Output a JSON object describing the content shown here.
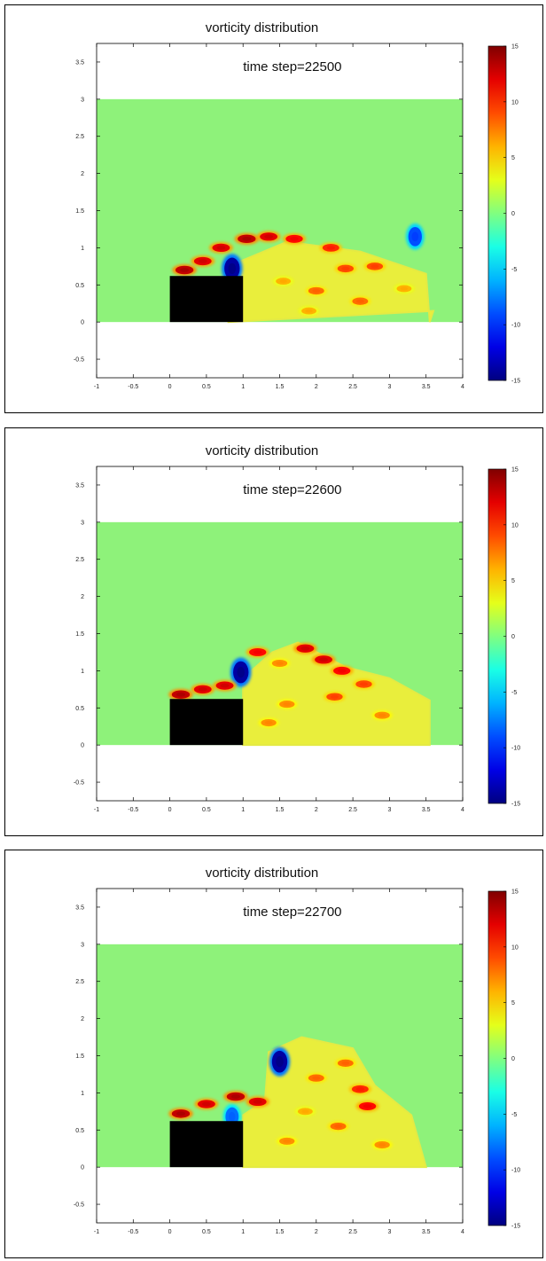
{
  "chart_data": [
    {
      "type": "heatmap",
      "title": "vorticity distribution",
      "annotation": "time step=22500",
      "xlabel": "",
      "ylabel": "",
      "xlim": [
        -1,
        4
      ],
      "ylim": [
        -0.75,
        3.75
      ],
      "xticks": [
        "-1",
        "-0.5",
        "0",
        "0.5",
        "1",
        "1.5",
        "2",
        "2.5",
        "3",
        "3.5",
        "4"
      ],
      "yticks": [
        "3.5",
        "3",
        "2.5",
        "2",
        "1.5",
        "1",
        "0.5",
        "0",
        "-0.5"
      ],
      "colorbar": {
        "min": -15,
        "max": 15,
        "ticks": [
          "15",
          "10",
          "5",
          "0",
          "-5",
          "-10",
          "-15"
        ]
      },
      "domain": {
        "x": [
          -1,
          4
        ],
        "y": [
          0,
          3
        ]
      },
      "obstacle": {
        "x": [
          0,
          1
        ],
        "y": [
          0,
          0.62
        ]
      },
      "wake_region": [
        [
          0.8,
          0
        ],
        [
          0.8,
          0.75
        ],
        [
          1.6,
          1.08
        ],
        [
          2.6,
          0.95
        ],
        [
          3.5,
          0.65
        ],
        [
          3.55,
          0
        ],
        [
          3.6,
          0.15
        ]
      ],
      "vortices": [
        {
          "x": 0.85,
          "y": 0.72,
          "w": -14
        },
        {
          "x": 3.35,
          "y": 1.15,
          "w": -9
        },
        {
          "x": 0.2,
          "y": 0.7,
          "w": 13
        },
        {
          "x": 0.45,
          "y": 0.82,
          "w": 12
        },
        {
          "x": 0.7,
          "y": 1.0,
          "w": 12
        },
        {
          "x": 1.05,
          "y": 1.12,
          "w": 13
        },
        {
          "x": 1.35,
          "y": 1.15,
          "w": 12
        },
        {
          "x": 1.7,
          "y": 1.12,
          "w": 11
        },
        {
          "x": 2.2,
          "y": 1.0,
          "w": 10
        },
        {
          "x": 2.4,
          "y": 0.72,
          "w": 9
        },
        {
          "x": 2.8,
          "y": 0.75,
          "w": 9
        },
        {
          "x": 2.0,
          "y": 0.42,
          "w": 8
        },
        {
          "x": 2.6,
          "y": 0.28,
          "w": 8
        },
        {
          "x": 1.55,
          "y": 0.55,
          "w": 6
        },
        {
          "x": 3.2,
          "y": 0.45,
          "w": 6
        },
        {
          "x": 1.9,
          "y": 0.15,
          "w": 6
        }
      ]
    },
    {
      "type": "heatmap",
      "title": "vorticity distribution",
      "annotation": "time step=22600",
      "xlabel": "",
      "ylabel": "",
      "xlim": [
        -1,
        4
      ],
      "ylim": [
        -0.75,
        3.75
      ],
      "xticks": [
        "-1",
        "-0.5",
        "0",
        "0.5",
        "1",
        "1.5",
        "2",
        "2.5",
        "3",
        "3.5",
        "4"
      ],
      "yticks": [
        "3.5",
        "3",
        "2.5",
        "2",
        "1.5",
        "1",
        "0.5",
        "0",
        "-0.5"
      ],
      "colorbar": {
        "min": -15,
        "max": 15,
        "ticks": [
          "15",
          "10",
          "5",
          "0",
          "-5",
          "-10",
          "-15"
        ]
      },
      "domain": {
        "x": [
          -1,
          4
        ],
        "y": [
          0,
          3
        ]
      },
      "obstacle": {
        "x": [
          0,
          1
        ],
        "y": [
          0,
          0.62
        ]
      },
      "wake_region": [
        [
          1.0,
          0
        ],
        [
          1.0,
          0.9
        ],
        [
          1.4,
          1.25
        ],
        [
          1.75,
          1.38
        ],
        [
          2.4,
          1.05
        ],
        [
          3.0,
          0.9
        ],
        [
          3.55,
          0.6
        ],
        [
          3.55,
          0
        ]
      ],
      "vortices": [
        {
          "x": 0.97,
          "y": 0.98,
          "w": -14
        },
        {
          "x": 0.15,
          "y": 0.68,
          "w": 13
        },
        {
          "x": 0.45,
          "y": 0.75,
          "w": 12
        },
        {
          "x": 0.75,
          "y": 0.8,
          "w": 12
        },
        {
          "x": 1.2,
          "y": 1.25,
          "w": 11
        },
        {
          "x": 1.85,
          "y": 1.3,
          "w": 12
        },
        {
          "x": 2.1,
          "y": 1.15,
          "w": 12
        },
        {
          "x": 2.35,
          "y": 1.0,
          "w": 11
        },
        {
          "x": 2.65,
          "y": 0.82,
          "w": 9
        },
        {
          "x": 2.25,
          "y": 0.65,
          "w": 9
        },
        {
          "x": 1.5,
          "y": 1.1,
          "w": 7
        },
        {
          "x": 1.6,
          "y": 0.55,
          "w": 7
        },
        {
          "x": 1.35,
          "y": 0.3,
          "w": 7
        },
        {
          "x": 2.9,
          "y": 0.4,
          "w": 7
        }
      ]
    },
    {
      "type": "heatmap",
      "title": "vorticity distribution",
      "annotation": "time step=22700",
      "xlabel": "",
      "ylabel": "",
      "xlim": [
        -1,
        4
      ],
      "ylim": [
        -0.75,
        3.75
      ],
      "xticks": [
        "-1",
        "-0.5",
        "0",
        "0.5",
        "1",
        "1.5",
        "2",
        "2.5",
        "3",
        "3.5",
        "4"
      ],
      "yticks": [
        "3.5",
        "3",
        "2.5",
        "2",
        "1.5",
        "1",
        "0.5",
        "0",
        "-0.5"
      ],
      "colorbar": {
        "min": -15,
        "max": 15,
        "ticks": [
          "15",
          "10",
          "5",
          "0",
          "-5",
          "-10",
          "-15"
        ]
      },
      "domain": {
        "x": [
          -1,
          4
        ],
        "y": [
          0,
          3
        ]
      },
      "obstacle": {
        "x": [
          0,
          1
        ],
        "y": [
          0,
          0.62
        ]
      },
      "wake_region": [
        [
          1.0,
          0
        ],
        [
          1.0,
          0.7
        ],
        [
          1.3,
          0.9
        ],
        [
          1.35,
          1.55
        ],
        [
          1.8,
          1.75
        ],
        [
          2.5,
          1.6
        ],
        [
          2.8,
          1.1
        ],
        [
          3.3,
          0.7
        ],
        [
          3.5,
          0
        ]
      ],
      "vortices": [
        {
          "x": 1.5,
          "y": 1.42,
          "w": -14
        },
        {
          "x": 0.85,
          "y": 0.68,
          "w": -8
        },
        {
          "x": 0.15,
          "y": 0.72,
          "w": 13
        },
        {
          "x": 0.5,
          "y": 0.85,
          "w": 12
        },
        {
          "x": 0.9,
          "y": 0.95,
          "w": 13
        },
        {
          "x": 1.2,
          "y": 0.88,
          "w": 12
        },
        {
          "x": 2.7,
          "y": 0.82,
          "w": 11
        },
        {
          "x": 2.6,
          "y": 1.05,
          "w": 10
        },
        {
          "x": 2.0,
          "y": 1.2,
          "w": 8
        },
        {
          "x": 2.4,
          "y": 1.4,
          "w": 8
        },
        {
          "x": 2.3,
          "y": 0.55,
          "w": 8
        },
        {
          "x": 1.6,
          "y": 0.35,
          "w": 7
        },
        {
          "x": 2.9,
          "y": 0.3,
          "w": 7
        },
        {
          "x": 1.85,
          "y": 0.75,
          "w": 6
        }
      ]
    }
  ]
}
